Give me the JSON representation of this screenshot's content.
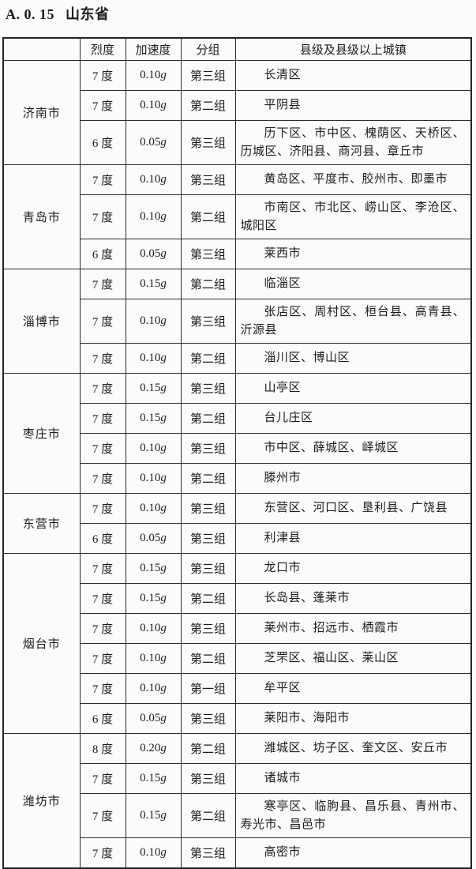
{
  "page": {
    "section_number": "A. 0. 15",
    "section_title": "山东省"
  },
  "table": {
    "headers": {
      "city": "",
      "intensity": "烈度",
      "acceleration": "加速度",
      "group": "分组",
      "towns": "县级及县级以上城镇"
    },
    "acceleration_unit": "g",
    "cities": [
      {
        "name": "济南市",
        "rows": [
          {
            "intensity": "7 度",
            "acceleration": "0.10",
            "group": "第三组",
            "towns": "长清区",
            "lines": 1
          },
          {
            "intensity": "7 度",
            "acceleration": "0.10",
            "group": "第二组",
            "towns": "平阴县",
            "lines": 1
          },
          {
            "intensity": "6 度",
            "acceleration": "0.05",
            "group": "第三组",
            "towns": "历下区、市中区、槐荫区、天桥区、历城区、济阳县、商河县、章丘市",
            "lines": 2
          }
        ]
      },
      {
        "name": "青岛市",
        "rows": [
          {
            "intensity": "7 度",
            "acceleration": "0.10",
            "group": "第三组",
            "towns": "黄岛区、平度市、胶州市、即墨市",
            "lines": 1
          },
          {
            "intensity": "7 度",
            "acceleration": "0.10",
            "group": "第二组",
            "towns": "市南区、市北区、崂山区、李沧区、城阳区",
            "lines": 2
          },
          {
            "intensity": "6 度",
            "acceleration": "0.05",
            "group": "第三组",
            "towns": "莱西市",
            "lines": 1
          }
        ]
      },
      {
        "name": "淄博市",
        "rows": [
          {
            "intensity": "7 度",
            "acceleration": "0.15",
            "group": "第二组",
            "towns": "临淄区",
            "lines": 1
          },
          {
            "intensity": "7 度",
            "acceleration": "0.10",
            "group": "第三组",
            "towns": "张店区、周村区、桓台县、高青县、沂源县",
            "lines": 2
          },
          {
            "intensity": "7 度",
            "acceleration": "0.10",
            "group": "第二组",
            "towns": "淄川区、博山区",
            "lines": 1
          }
        ]
      },
      {
        "name": "枣庄市",
        "rows": [
          {
            "intensity": "7 度",
            "acceleration": "0.15",
            "group": "第三组",
            "towns": "山亭区",
            "lines": 1
          },
          {
            "intensity": "7 度",
            "acceleration": "0.15",
            "group": "第二组",
            "towns": "台儿庄区",
            "lines": 1
          },
          {
            "intensity": "7 度",
            "acceleration": "0.10",
            "group": "第三组",
            "towns": "市中区、薛城区、峄城区",
            "lines": 1
          },
          {
            "intensity": "7 度",
            "acceleration": "0.10",
            "group": "第二组",
            "towns": "滕州市",
            "lines": 1
          }
        ]
      },
      {
        "name": "东营市",
        "rows": [
          {
            "intensity": "7 度",
            "acceleration": "0.10",
            "group": "第三组",
            "towns": "东营区、河口区、垦利县、广饶县",
            "lines": 1
          },
          {
            "intensity": "6 度",
            "acceleration": "0.05",
            "group": "第三组",
            "towns": "利津县",
            "lines": 1
          }
        ]
      },
      {
        "name": "烟台市",
        "rows": [
          {
            "intensity": "7 度",
            "acceleration": "0.15",
            "group": "第三组",
            "towns": "龙口市",
            "lines": 1
          },
          {
            "intensity": "7 度",
            "acceleration": "0.15",
            "group": "第二组",
            "towns": "长岛县、蓬莱市",
            "lines": 1
          },
          {
            "intensity": "7 度",
            "acceleration": "0.10",
            "group": "第三组",
            "towns": "莱州市、招远市、栖霞市",
            "lines": 1
          },
          {
            "intensity": "7 度",
            "acceleration": "0.10",
            "group": "第二组",
            "towns": "芝罘区、福山区、莱山区",
            "lines": 1
          },
          {
            "intensity": "7 度",
            "acceleration": "0.10",
            "group": "第一组",
            "towns": "牟平区",
            "lines": 1
          },
          {
            "intensity": "6 度",
            "acceleration": "0.05",
            "group": "第三组",
            "towns": "莱阳市、海阳市",
            "lines": 1
          }
        ]
      },
      {
        "name": "潍坊市",
        "rows": [
          {
            "intensity": "8 度",
            "acceleration": "0.20",
            "group": "第二组",
            "towns": "潍城区、坊子区、奎文区、安丘市",
            "lines": 1
          },
          {
            "intensity": "7 度",
            "acceleration": "0.15",
            "group": "第三组",
            "towns": "诸城市",
            "lines": 1
          },
          {
            "intensity": "7 度",
            "acceleration": "0.15",
            "group": "第二组",
            "towns": "寒亭区、临朐县、昌乐县、青州市、寿光市、昌邑市",
            "lines": 2
          },
          {
            "intensity": "7 度",
            "acceleration": "0.10",
            "group": "第三组",
            "towns": "高密市",
            "lines": 1
          }
        ]
      }
    ]
  }
}
